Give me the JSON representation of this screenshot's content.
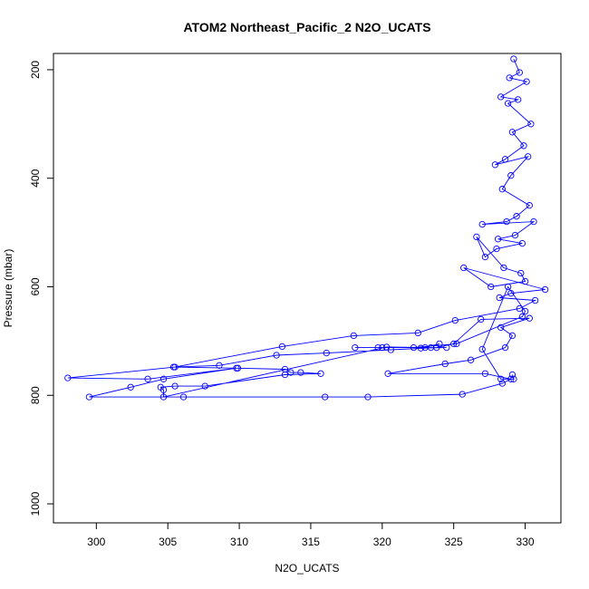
{
  "chart_data": {
    "type": "line",
    "title": "ATOM2 Northeast_Pacific_2 N2O_UCATS",
    "xlabel": "N2O_UCATS",
    "ylabel": "Pressure (mbar)",
    "xlim": [
      297,
      332.5
    ],
    "ylim": [
      1035,
      170
    ],
    "y_reversed": true,
    "x_ticks": [
      300,
      305,
      310,
      315,
      320,
      325,
      330
    ],
    "y_ticks": [
      200,
      400,
      600,
      800,
      1000
    ],
    "grid": false,
    "legend": "none",
    "color": "#0000ff",
    "series": [
      {
        "x": [
          329.2,
          329.6,
          328.9,
          330.1,
          328.3,
          329.5,
          328.8,
          330.4,
          329.1,
          329.9,
          328.6,
          327.9,
          330.2,
          329.0,
          328.4,
          330.3,
          329.4,
          328.7,
          327.0,
          330.6,
          329.3,
          328.1,
          329.8,
          328.0,
          327.2,
          326.6,
          328.5,
          329.7,
          330.0,
          327.6,
          325.7,
          331.4,
          329.0,
          328.2,
          330.7,
          329.6,
          325.1,
          322.5,
          318.0,
          313.0,
          305.5,
          298.0,
          303.6,
          309.8,
          304.7,
          302.4,
          299.5,
          306.1,
          316.0,
          319.0,
          325.6,
          328.4,
          329.0,
          327.2,
          320.4,
          324.4,
          326.2,
          328.6,
          329.1,
          328.3,
          330.3,
          326.9,
          325.0,
          323.8,
          320.6,
          316.1,
          312.6,
          308.6,
          305.4,
          309.9,
          313.2,
          313.6,
          314.3,
          315.7,
          313.2,
          307.6,
          305.5,
          304.5,
          304.7,
          304.7,
          320.3,
          323.4,
          323.0,
          324.0,
          322.7,
          324.5,
          320.0,
          319.7,
          318.1,
          322.2,
          325.2,
          329.8,
          330.0,
          328.8,
          327.0,
          328.3,
          329.2,
          329.1
        ],
        "y": [
          180,
          205,
          215,
          222,
          250,
          255,
          262,
          300,
          315,
          340,
          365,
          375,
          360,
          395,
          420,
          450,
          470,
          480,
          485,
          480,
          505,
          512,
          520,
          530,
          545,
          508,
          565,
          575,
          590,
          600,
          565,
          605,
          612,
          620,
          625,
          640,
          662,
          685,
          690,
          710,
          748,
          768,
          770,
          750,
          770,
          785,
          803,
          803,
          803,
          803,
          798,
          778,
          770,
          760,
          760,
          742,
          735,
          712,
          690,
          675,
          658,
          660,
          705,
          712,
          716,
          722,
          726,
          745,
          748,
          750,
          752,
          758,
          758,
          760,
          762,
          783,
          783,
          785,
          790,
          803,
          711,
          712,
          712,
          705,
          713,
          712,
          712,
          712,
          712,
          712,
          705,
          655,
          645,
          600,
          715,
          770,
          770,
          762
        ]
      }
    ]
  }
}
